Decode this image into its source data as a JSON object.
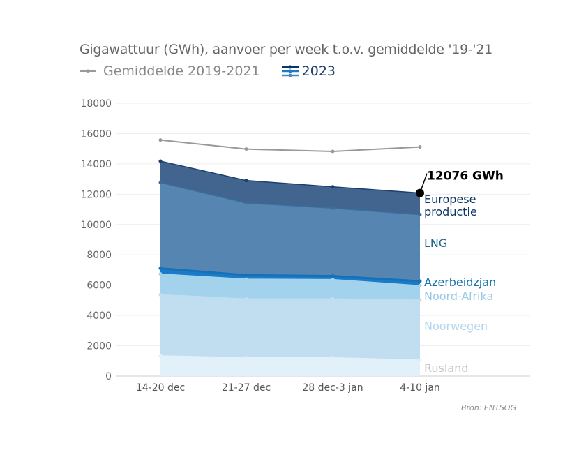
{
  "chart_data": {
    "type": "area",
    "stacked": true,
    "title": "Gigawattuur (GWh), aanvoer per week t.o.v. gemiddelde '19-'21",
    "categories": [
      "14-20 dec",
      "21-27 dec",
      "28 dec-3 jan",
      "4-10 jan"
    ],
    "ylim": [
      0,
      18000
    ],
    "yticks": [
      0,
      2000,
      4000,
      6000,
      8000,
      10000,
      12000,
      14000,
      16000,
      18000
    ],
    "grid": true,
    "legend": {
      "average_label": "Gemiddelde 2019-2021",
      "current_label": "2023",
      "placement": "top-left"
    },
    "average": {
      "name": "Gemiddelde 2019-2021",
      "values": [
        15575,
        14977,
        14825,
        15115
      ],
      "color": "#999999"
    },
    "series_cumulative_tops": [
      {
        "name": "Rusland",
        "values": [
          1335,
          1212,
          1212,
          1060
        ],
        "color": "#e2f1f9",
        "label_color": "#c4c4c4"
      },
      {
        "name": "Noorwegen",
        "values": [
          5370,
          5095,
          5095,
          5018
        ],
        "color": "#c0def0",
        "label_color": "#b3d6ec"
      },
      {
        "name": "Noord-Afrika",
        "values": [
          6737,
          6400,
          6370,
          5970
        ],
        "color": "#a3d2ed",
        "label_color": "#97c9e6"
      },
      {
        "name": "Azerbeidzjan",
        "values": [
          7105,
          6661,
          6600,
          6262
        ],
        "color": "#1a7cc8",
        "label_color": "#1570ad"
      },
      {
        "name": "LNG",
        "values": [
          12767,
          11418,
          11081,
          10650
        ],
        "color": "#5585b0",
        "label_color": "#1d6688"
      },
      {
        "name": "Europese\nproductie",
        "values": [
          14180,
          12905,
          12490,
          12076
        ],
        "color": "#41658f",
        "label_color": "#0d3466"
      }
    ],
    "annotation": "12076 GWh",
    "source": "Bron: ENTSOG"
  }
}
